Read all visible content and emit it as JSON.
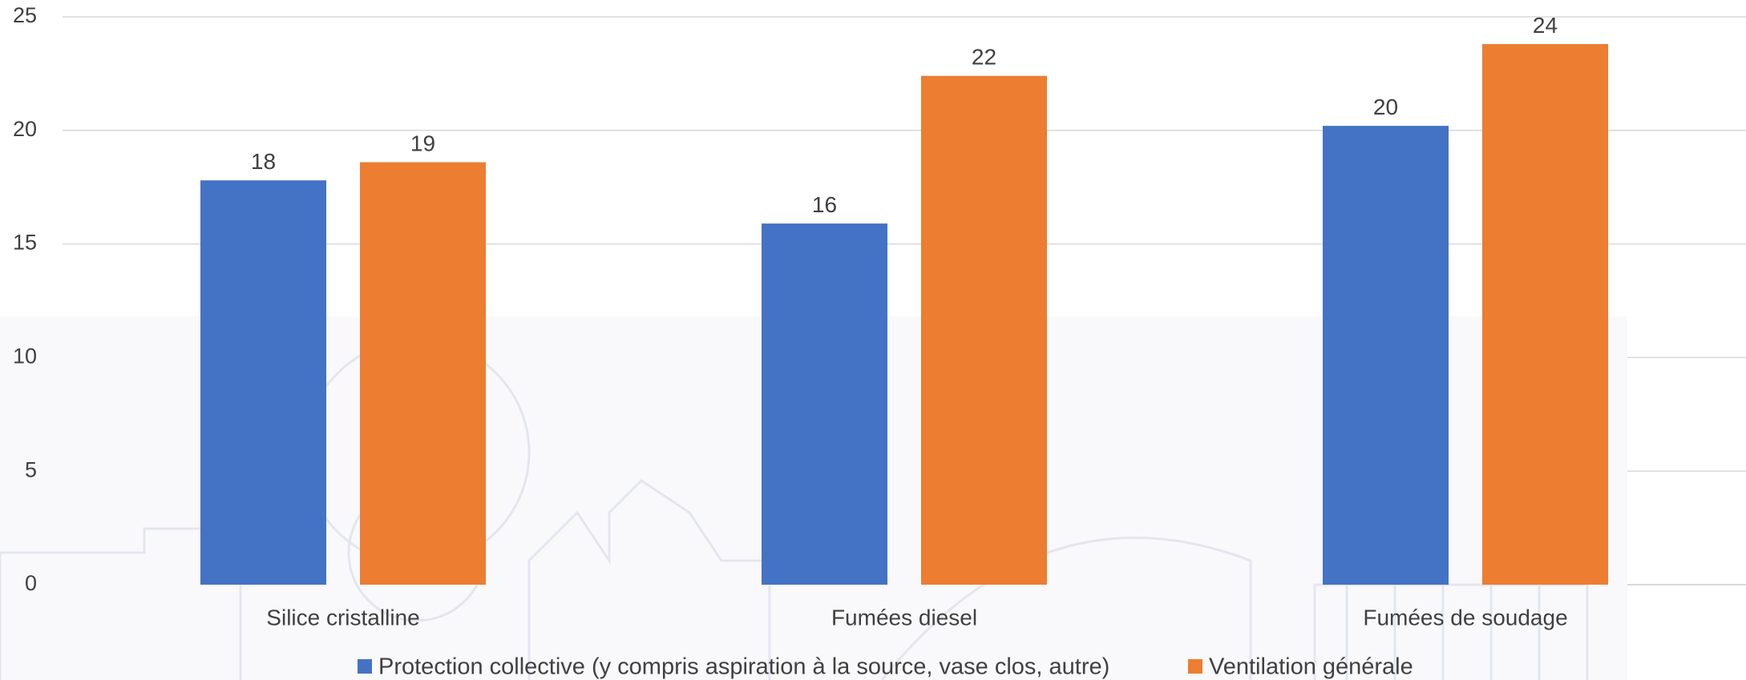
{
  "chart_data": {
    "type": "bar",
    "title": "",
    "xlabel": "",
    "ylabel": "",
    "categories": [
      "Silice cristalline",
      "Fumées diesel",
      "Fumées de soudage"
    ],
    "series": [
      {
        "name": "Protection collective (y compris aspiration à la source, vase clos, autre)",
        "color": "#4472C4",
        "values": [
          17.8,
          15.9,
          20.2
        ],
        "labels": [
          "18",
          "16",
          "20"
        ]
      },
      {
        "name": "Ventilation générale",
        "color": "#ED7D31",
        "values": [
          18.6,
          22.4,
          23.8
        ],
        "labels": [
          "19",
          "22",
          "24"
        ]
      }
    ],
    "ylim": [
      0,
      25
    ],
    "yticks": [
      "0",
      "5",
      "10",
      "15",
      "20",
      "25"
    ],
    "grid": true,
    "legend_position": "bottom"
  }
}
